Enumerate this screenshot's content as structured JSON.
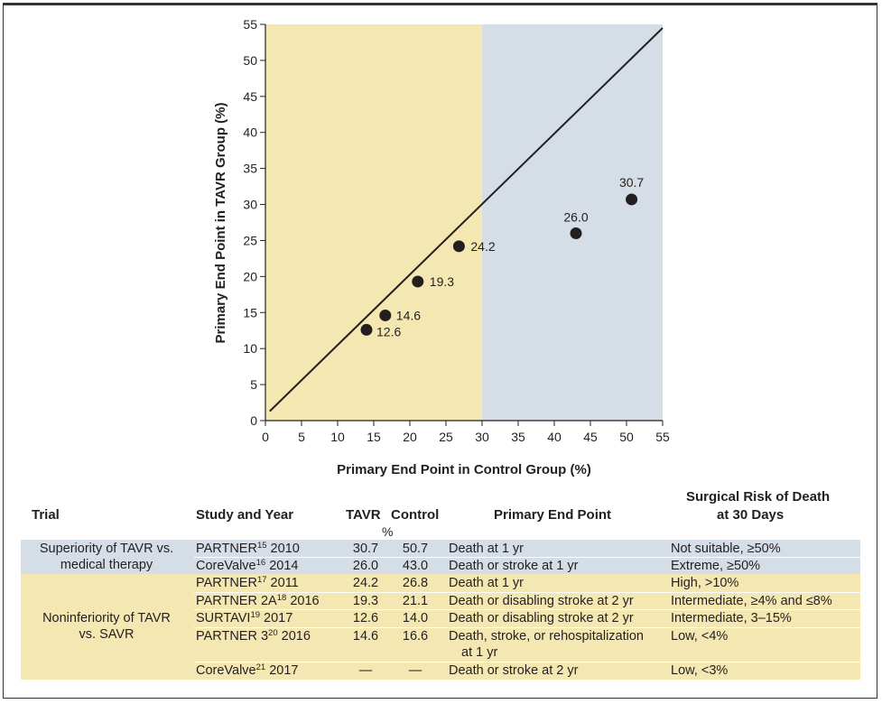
{
  "chart_data": {
    "type": "scatter",
    "xlabel": "Primary End Point in Control Group (%)",
    "ylabel": "Primary End Point in TAVR Group (%)",
    "xlim": [
      0,
      55
    ],
    "ylim": [
      0,
      55
    ],
    "xticks": [
      0,
      5,
      10,
      15,
      20,
      25,
      30,
      35,
      40,
      45,
      50,
      55
    ],
    "yticks": [
      0,
      5,
      10,
      15,
      20,
      25,
      30,
      35,
      40,
      45,
      50,
      55
    ],
    "regions": [
      {
        "x_from": 0,
        "x_to": 30,
        "color": "#f5e7b2"
      },
      {
        "x_from": 30,
        "x_to": 55,
        "color": "#d5dde6"
      }
    ],
    "identity_line": {
      "from": [
        0.6,
        1.3
      ],
      "to": [
        55,
        54.5
      ]
    },
    "points": [
      {
        "x": 50.7,
        "y": 30.7,
        "label": "30.7"
      },
      {
        "x": 43.0,
        "y": 26.0,
        "label": "26.0"
      },
      {
        "x": 26.8,
        "y": 24.2,
        "label": "24.2"
      },
      {
        "x": 21.1,
        "y": 19.3,
        "label": "19.3"
      },
      {
        "x": 16.6,
        "y": 14.6,
        "label": "14.6"
      },
      {
        "x": 14.0,
        "y": 12.6,
        "label": "12.6"
      }
    ]
  },
  "table": {
    "headers": {
      "trial": "Trial",
      "study": "Study and Year",
      "tavr": "TAVR",
      "control": "Control",
      "pct": "%",
      "endpoint": "Primary End Point",
      "risk_line1": "Surgical Risk of Death",
      "risk_line2": "at 30 Days"
    },
    "groups": [
      {
        "line1": "Superiority of TAVR vs.",
        "line2": "medical therapy"
      },
      {
        "line1": "Noninferiority of TAVR",
        "line2": "vs. SAVR"
      }
    ],
    "rows": [
      {
        "study": "PARTNER",
        "ref": "15",
        "year": " 2010",
        "tavr": "30.7",
        "control": "50.7",
        "endpoint": "Death at 1 yr",
        "endpoint2": "",
        "risk": "Not suitable, ≥50%"
      },
      {
        "study": "CoreValve",
        "ref": "16",
        "year": " 2014",
        "tavr": "26.0",
        "control": "43.0",
        "endpoint": "Death or stroke at 1 yr",
        "endpoint2": "",
        "risk": "Extreme, ≥50%"
      },
      {
        "study": "PARTNER",
        "ref": "17",
        "year": " 2011",
        "tavr": "24.2",
        "control": "26.8",
        "endpoint": "Death at 1 yr",
        "endpoint2": "",
        "risk": "High, >10%"
      },
      {
        "study": "PARTNER 2A",
        "ref": "18",
        "year": " 2016",
        "tavr": "19.3",
        "control": "21.1",
        "endpoint": "Death or disabling stroke at 2 yr",
        "endpoint2": "",
        "risk": "Intermediate, ≥4% and ≤8%"
      },
      {
        "study": "SURTAVI",
        "ref": "19",
        "year": " 2017",
        "tavr": "12.6",
        "control": "14.0",
        "endpoint": "Death or disabling stroke at 2 yr",
        "endpoint2": "",
        "risk": "Intermediate, 3–15%"
      },
      {
        "study": "PARTNER 3",
        "ref": "20",
        "year": " 2016",
        "tavr": "14.6",
        "control": "16.6",
        "endpoint": "Death, stroke, or rehospitalization",
        "endpoint2": "at 1 yr",
        "risk": "Low, <4%"
      },
      {
        "study": "CoreValve",
        "ref": "21",
        "year": " 2017",
        "tavr": "—",
        "control": "—",
        "endpoint": "Death or stroke at 2 yr",
        "endpoint2": "",
        "risk": "Low, <3%"
      }
    ]
  }
}
